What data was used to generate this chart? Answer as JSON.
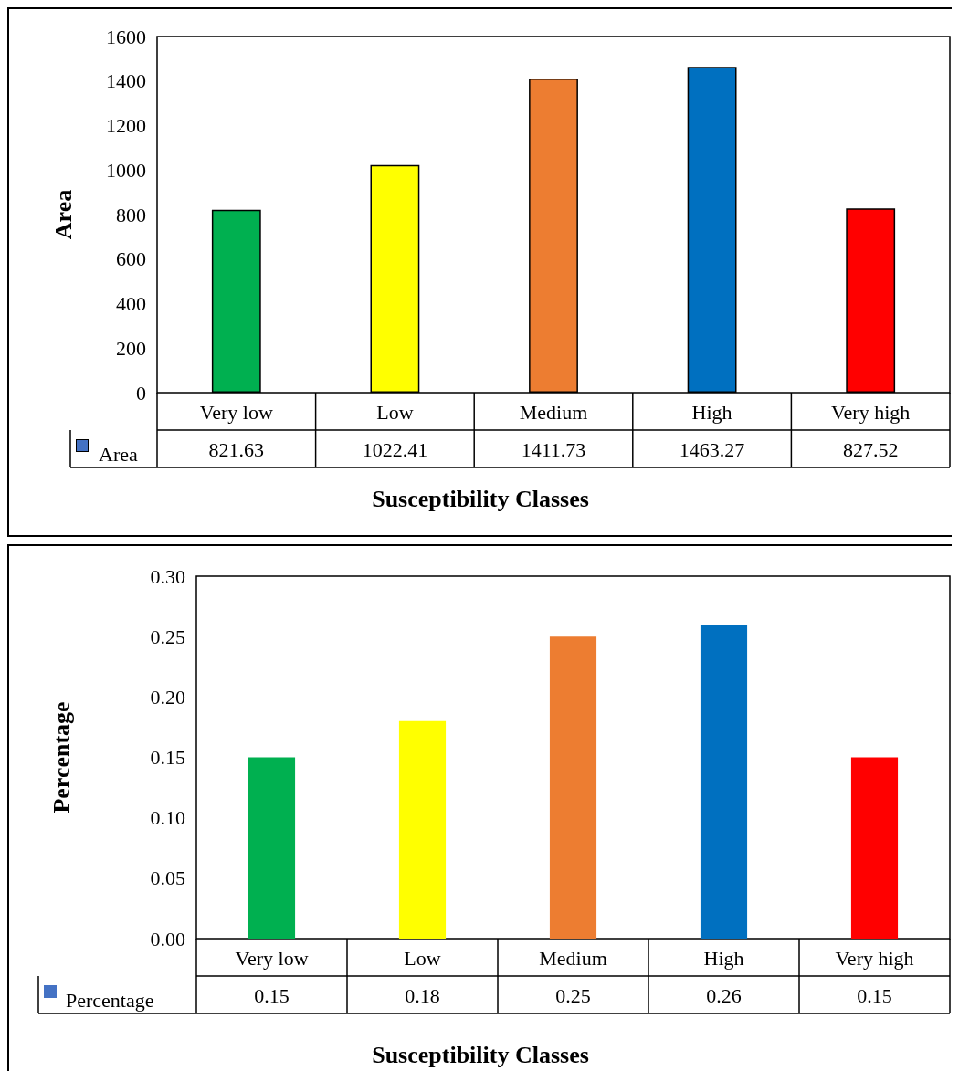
{
  "chart_data": [
    {
      "type": "bar",
      "xlabel": "Susceptibility Classes",
      "ylabel": "Area",
      "categories": [
        "Very low",
        "Low",
        "Medium",
        "High",
        "Very high"
      ],
      "series": [
        {
          "name": "Area",
          "color": "#4472c4",
          "colors": [
            "#00b050",
            "#ffff00",
            "#ed7d31",
            "#0070c0",
            "#ff0000"
          ],
          "values": [
            821.63,
            1022.41,
            1411.73,
            1463.27,
            827.52
          ]
        }
      ],
      "ylim": [
        0,
        1600
      ],
      "yticks": [
        0,
        200,
        400,
        600,
        800,
        1000,
        1200,
        1400,
        1600
      ],
      "data_labels": true,
      "legend": "bottom left",
      "grid": false
    },
    {
      "type": "bar",
      "xlabel": "Susceptibility Classes",
      "ylabel": "Percentage",
      "categories": [
        "Very low",
        "Low",
        "Medium",
        "High",
        "Very high"
      ],
      "series": [
        {
          "name": "Percentage",
          "color": "#4472c4",
          "colors": [
            "#00b050",
            "#ffff00",
            "#ed7d31",
            "#0070c0",
            "#ff0000"
          ],
          "values": [
            0.15,
            0.18,
            0.25,
            0.26,
            0.15
          ]
        }
      ],
      "ylim": [
        0,
        0.3
      ],
      "yticks": [
        {
          "value": 0,
          "label": "0.00"
        },
        {
          "value": 0.05,
          "label": "0.05"
        },
        {
          "value": 0.1,
          "label": "0.10"
        },
        {
          "value": 0.15,
          "label": "0.15"
        },
        {
          "value": 0.2,
          "label": "0.20"
        },
        {
          "value": 0.25,
          "label": "0.25"
        },
        {
          "value": 0.3,
          "label": "0.30"
        }
      ],
      "data_labels": true,
      "legend": "bottom left",
      "grid": false
    }
  ]
}
